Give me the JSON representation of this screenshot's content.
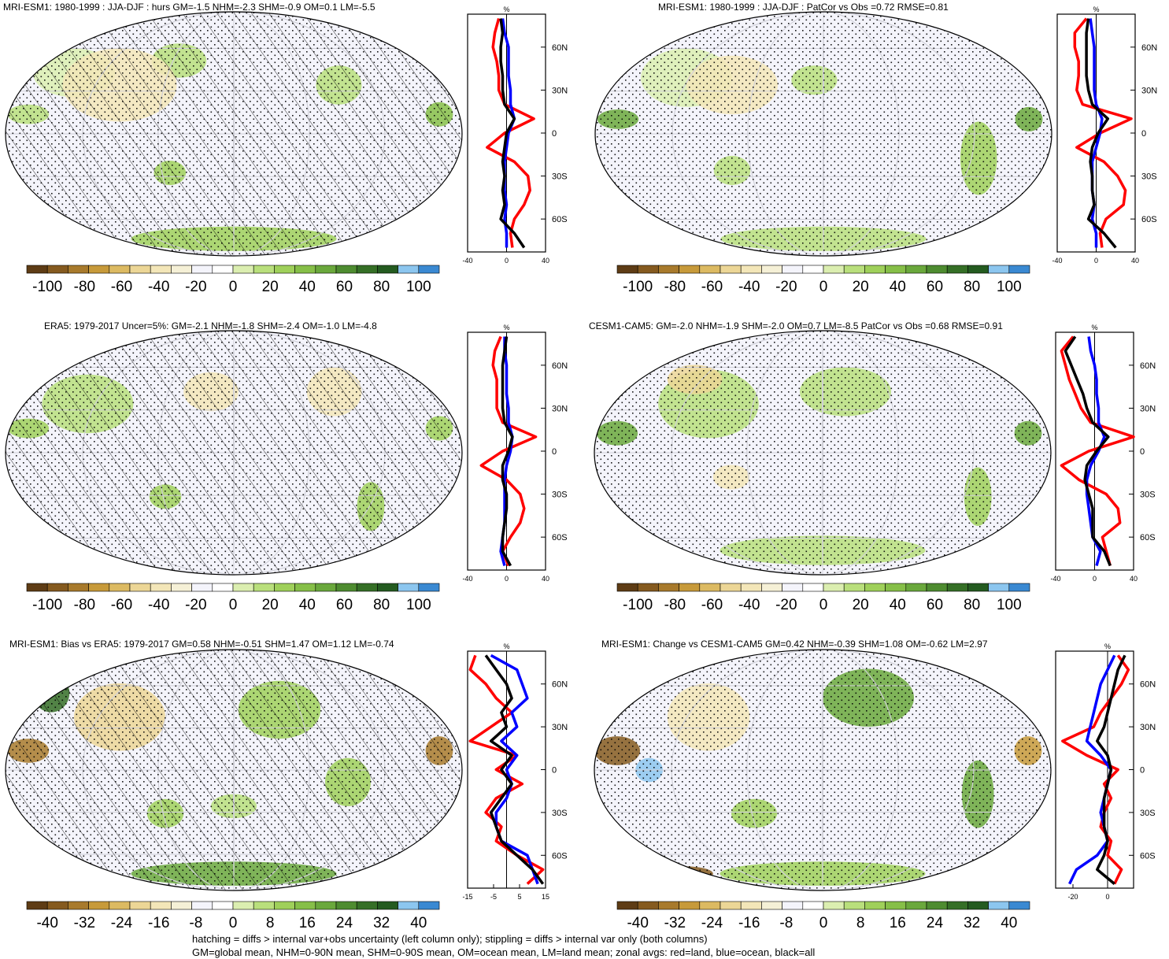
{
  "colors": {
    "scale": [
      "#5e3c15",
      "#855a1f",
      "#a87a2c",
      "#c79a3a",
      "#dcba62",
      "#ecd696",
      "#f3e6b8",
      "#f5f0d6",
      "#f4f4fb",
      "#ffffff",
      "#dbeeb0",
      "#b9df7c",
      "#9fd05a",
      "#86bf48",
      "#6aa83c",
      "#4e8c30",
      "#356f26",
      "#245b20",
      "#8cc6ef",
      "#3a89d2"
    ],
    "land_line": "#ff0000",
    "ocean_line": "#0000ff",
    "all_line": "#000000"
  },
  "panels": [
    {
      "title": "MRI-ESM1: 1980-1999 : JJA-DJF : hurs GM=-1.5 NHM=-2.3 SHM=-0.9 OM=0.1 LM=-5.5"
    },
    {
      "title": "MRI-ESM1: 1980-1999 : JJA-DJF : PatCor vs Obs =0.72 RMSE=0.81"
    },
    {
      "title": "ERA5: 1979-2017 Uncer=5%: GM=-2.1 NHM=-1.8 SHM=-2.4 OM=-1.0 LM=-4.8"
    },
    {
      "title": "CESM1-CAM5: GM=-2.0 NHM=-1.9 SHM=-2.0 OM=0.7 LM=-8.5 PatCor vs Obs =0.68 RMSE=0.91"
    },
    {
      "title": "MRI-ESM1: Bias vs ERA5: 1979-2017 GM=0.58 NHM=-0.51 SHM=1.47 OM=1.12 LM=-0.74"
    },
    {
      "title": "MRI-ESM1: Change vs CESM1-CAM5 GM=0.42 NHM=-0.39 SHM=1.08 OM=-0.62 LM=2.97"
    }
  ],
  "colorbars": [
    {
      "labels": [
        "-100",
        "-80",
        "-60",
        "-40",
        "-20",
        "0",
        "20",
        "40",
        "60",
        "80",
        "100"
      ]
    },
    {
      "labels": [
        "-100",
        "-80",
        "-60",
        "-40",
        "-20",
        "0",
        "20",
        "40",
        "60",
        "80",
        "100"
      ]
    },
    {
      "labels": [
        "-100",
        "-80",
        "-60",
        "-40",
        "-20",
        "0",
        "20",
        "40",
        "60",
        "80",
        "100"
      ]
    },
    {
      "labels": [
        "-100",
        "-80",
        "-60",
        "-40",
        "-20",
        "0",
        "20",
        "40",
        "60",
        "80",
        "100"
      ]
    },
    {
      "labels": [
        "-40",
        "-32",
        "-24",
        "-16",
        "-8",
        "0",
        "8",
        "16",
        "24",
        "32",
        "40"
      ]
    },
    {
      "labels": [
        "-40",
        "-32",
        "-24",
        "-16",
        "-8",
        "0",
        "8",
        "16",
        "24",
        "32",
        "40"
      ]
    }
  ],
  "chart_data": [
    {
      "type": "line",
      "unit": "%",
      "lat_ticks": [
        "60N",
        "30N",
        "0",
        "30S",
        "60S"
      ],
      "x_ticks": [
        "-40",
        "0",
        "40"
      ],
      "xlim": [
        -40,
        40
      ],
      "lat_values": [
        80,
        70,
        60,
        50,
        40,
        30,
        20,
        10,
        0,
        -10,
        -20,
        -30,
        -40,
        -50,
        -60,
        -70,
        -80
      ],
      "series": [
        {
          "values": [
            -8,
            -12,
            -14,
            -10,
            -8,
            -8,
            -2,
            28,
            -2,
            -20,
            8,
            22,
            24,
            18,
            8,
            4,
            6
          ]
        },
        {
          "values": [
            -4,
            -2,
            2,
            2,
            2,
            4,
            4,
            8,
            2,
            0,
            -2,
            -2,
            -2,
            0,
            -2,
            0,
            0
          ]
        },
        {
          "values": [
            -6,
            -4,
            -6,
            -6,
            -4,
            -4,
            -2,
            8,
            0,
            -2,
            -4,
            -2,
            -4,
            -2,
            -6,
            8,
            18
          ]
        }
      ]
    },
    {
      "type": "line",
      "unit": "%",
      "lat_ticks": [
        "60N",
        "30N",
        "0",
        "30S",
        "60S"
      ],
      "x_ticks": [
        "-40",
        "0",
        "40"
      ],
      "xlim": [
        -40,
        40
      ],
      "lat_values": [
        80,
        70,
        60,
        50,
        40,
        30,
        20,
        10,
        0,
        -10,
        -20,
        -30,
        -40,
        -50,
        -60,
        -70,
        -80
      ],
      "series": [
        {
          "values": [
            -10,
            -22,
            -22,
            -18,
            -18,
            -20,
            -14,
            36,
            4,
            -20,
            8,
            22,
            30,
            28,
            10,
            4,
            6
          ]
        },
        {
          "values": [
            -6,
            -4,
            -2,
            -2,
            -2,
            -2,
            0,
            6,
            4,
            0,
            -4,
            -4,
            -4,
            -2,
            -4,
            0,
            0
          ]
        },
        {
          "values": [
            -8,
            -10,
            -10,
            -10,
            -10,
            -8,
            -4,
            12,
            2,
            -4,
            -6,
            -4,
            -4,
            -2,
            -8,
            8,
            20
          ]
        }
      ]
    },
    {
      "type": "line",
      "unit": "%",
      "lat_ticks": [
        "60N",
        "30N",
        "0",
        "30S",
        "60S"
      ],
      "x_ticks": [
        "-40",
        "0",
        "40"
      ],
      "xlim": [
        -40,
        40
      ],
      "lat_values": [
        80,
        70,
        60,
        50,
        40,
        30,
        20,
        10,
        0,
        -10,
        -20,
        -30,
        -40,
        -50,
        -60,
        -70,
        -80
      ],
      "series": [
        {
          "values": [
            -6,
            -12,
            -14,
            -10,
            -10,
            -10,
            -4,
            30,
            -4,
            -26,
            0,
            14,
            18,
            14,
            4,
            -4,
            2
          ]
        },
        {
          "values": [
            -2,
            -2,
            0,
            0,
            0,
            2,
            2,
            6,
            4,
            0,
            -2,
            -2,
            -2,
            -2,
            -4,
            -6,
            -2
          ]
        },
        {
          "values": [
            0,
            -2,
            -4,
            -4,
            -4,
            -4,
            -2,
            6,
            2,
            -4,
            -4,
            0,
            0,
            -2,
            -4,
            -4,
            4
          ]
        }
      ]
    },
    {
      "type": "line",
      "unit": "%",
      "lat_ticks": [
        "60N",
        "30N",
        "0",
        "30S",
        "60S"
      ],
      "x_ticks": [
        "-40",
        "0",
        "40"
      ],
      "xlim": [
        -40,
        40
      ],
      "lat_values": [
        80,
        70,
        60,
        50,
        40,
        30,
        20,
        10,
        0,
        -10,
        -20,
        -30,
        -40,
        -50,
        -60,
        -70,
        -80
      ],
      "series": [
        {
          "values": [
            -22,
            -34,
            -30,
            -26,
            -20,
            -14,
            -4,
            40,
            -6,
            -34,
            -16,
            12,
            24,
            26,
            8,
            12,
            16
          ]
        },
        {
          "values": [
            -6,
            -4,
            0,
            2,
            2,
            4,
            4,
            10,
            4,
            -4,
            -8,
            -8,
            -6,
            -4,
            -2,
            6,
            2
          ]
        },
        {
          "values": [
            -20,
            -30,
            -24,
            -18,
            -12,
            -8,
            -2,
            14,
            2,
            -8,
            -10,
            -6,
            -2,
            -2,
            -2,
            10,
            16
          ]
        }
      ]
    },
    {
      "type": "line",
      "unit": "%",
      "lat_ticks": [
        "60N",
        "30N",
        "0",
        "30S",
        "60S"
      ],
      "x_ticks": [
        "-15",
        "-5",
        "5",
        "15"
      ],
      "xlim": [
        -15,
        15
      ],
      "lat_values": [
        80,
        70,
        60,
        50,
        40,
        30,
        20,
        10,
        0,
        -10,
        -20,
        -30,
        -40,
        -50,
        -60,
        -70,
        -80
      ],
      "series": [
        {
          "values": [
            -12,
            -14,
            -8,
            -4,
            2,
            -6,
            -14,
            4,
            -4,
            6,
            -4,
            -8,
            -2,
            -4,
            4,
            14,
            8
          ]
        },
        {
          "values": [
            -6,
            4,
            6,
            8,
            2,
            4,
            -2,
            4,
            0,
            2,
            0,
            -4,
            -4,
            -2,
            8,
            10,
            12
          ]
        },
        {
          "values": [
            -8,
            -4,
            0,
            2,
            -2,
            0,
            -6,
            2,
            -2,
            2,
            -2,
            -6,
            -4,
            -2,
            4,
            10,
            14
          ]
        }
      ]
    },
    {
      "type": "line",
      "unit": "%",
      "lat_ticks": [
        "60N",
        "30N",
        "0",
        "30S",
        "60S"
      ],
      "x_ticks": [
        "-20",
        "0"
      ],
      "xlim": [
        -30,
        15
      ],
      "lat_values": [
        80,
        70,
        60,
        50,
        40,
        30,
        20,
        10,
        0,
        -10,
        -20,
        -30,
        -40,
        -50,
        -60,
        -70,
        -80
      ],
      "series": [
        {
          "values": [
            6,
            12,
            8,
            2,
            -4,
            -8,
            -26,
            -12,
            6,
            -2,
            2,
            -2,
            -4,
            2,
            0,
            8,
            4
          ]
        },
        {
          "values": [
            4,
            0,
            -4,
            -6,
            -8,
            -10,
            -12,
            -4,
            2,
            0,
            -2,
            -4,
            -2,
            0,
            -6,
            -18,
            -22
          ]
        },
        {
          "values": [
            10,
            6,
            4,
            2,
            0,
            -2,
            -6,
            0,
            2,
            0,
            -2,
            -2,
            -2,
            0,
            -2,
            -6,
            4
          ]
        }
      ]
    }
  ],
  "footer": {
    "line1": "hatching = diffs > internal var+obs uncertainty (left column only); stippling = diffs > internal var only (both columns)",
    "line2": "GM=global mean, NHM=0-90N mean, SHM=0-90S mean, OM=ocean mean, LM=land mean; zonal avgs: red=land, blue=ocean, black=all"
  }
}
